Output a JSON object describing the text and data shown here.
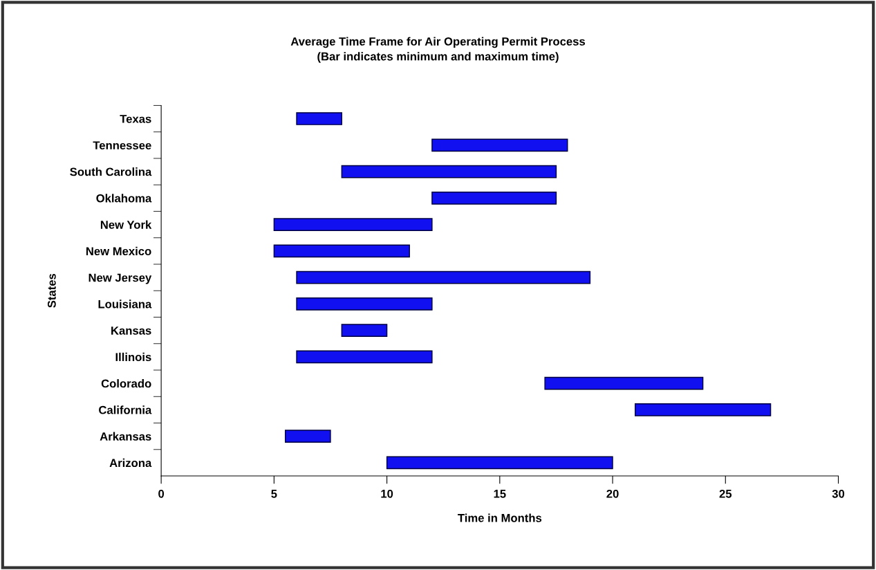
{
  "chart_data": {
    "type": "bar",
    "orientation": "horizontal",
    "title": "Average Time Frame for Air Operating Permit Process\n(Bar indicates minimum and maximum time)",
    "xlabel": "Time in Months",
    "ylabel": "States",
    "categories": [
      "Texas",
      "Tennessee",
      "South Carolina",
      "Oklahoma",
      "New York",
      "New Mexico",
      "New Jersey",
      "Louisiana",
      "Kansas",
      "Illinois",
      "Colorado",
      "California",
      "Arkansas",
      "Arizona"
    ],
    "base": [
      6,
      12,
      8,
      12,
      5,
      5,
      6,
      6,
      8,
      6,
      17,
      21,
      5.5,
      10
    ],
    "values": [
      2,
      6,
      9.5,
      5.5,
      7,
      6,
      13,
      6,
      2,
      6,
      7,
      6,
      2,
      10
    ],
    "color": "#1010f0",
    "xlim": [
      0,
      30
    ],
    "xticks": [
      0,
      5,
      10,
      15,
      20,
      25,
      30
    ],
    "grid": false
  }
}
